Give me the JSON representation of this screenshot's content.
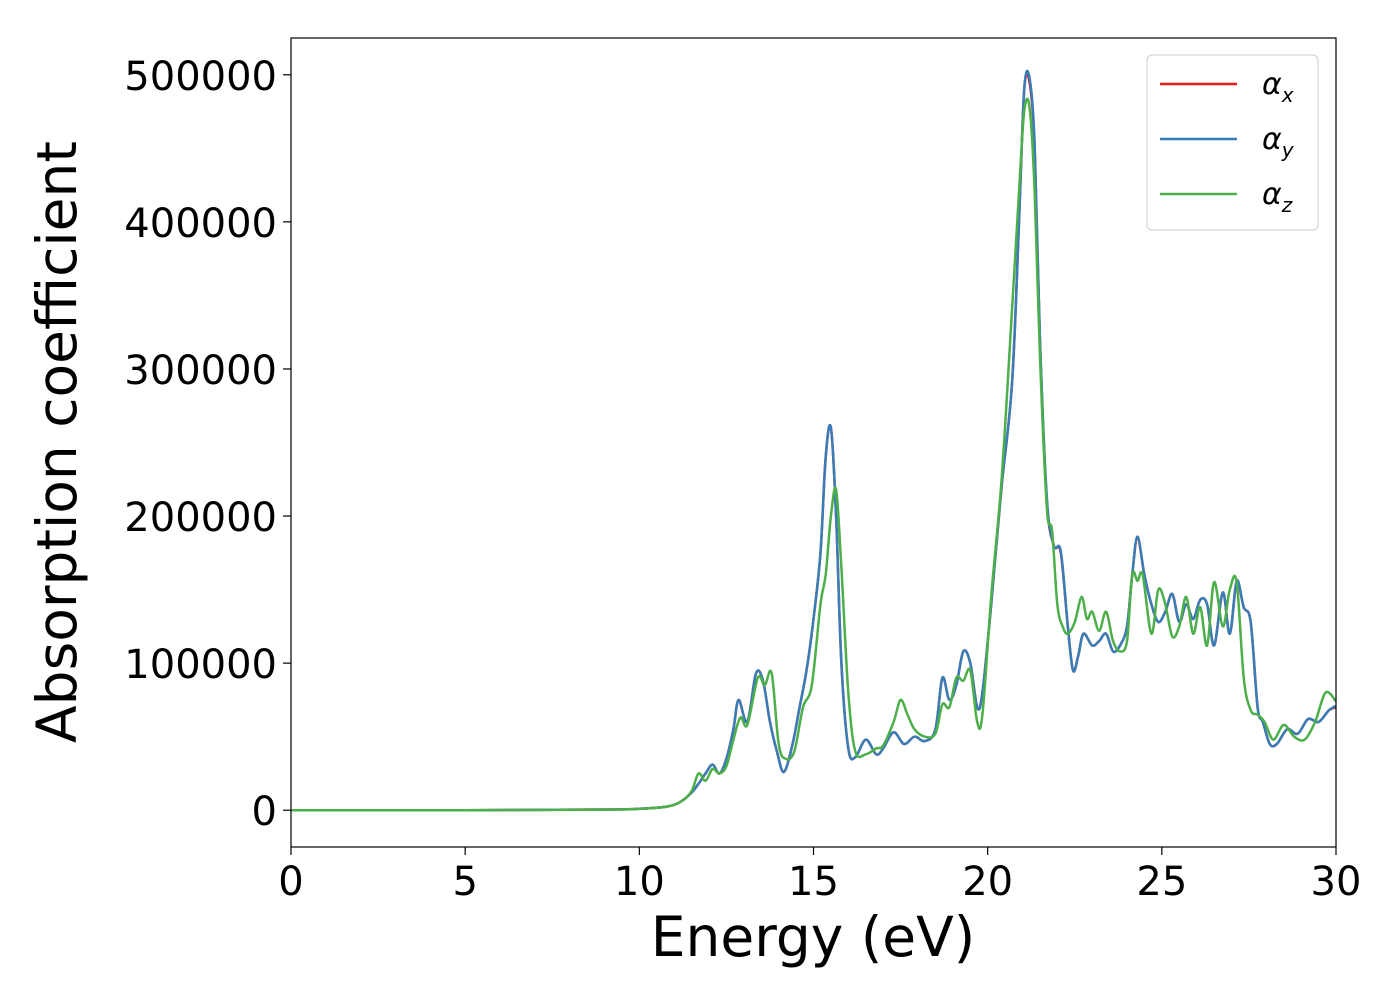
{
  "chart_data": {
    "type": "line",
    "xlabel": "Energy (eV)",
    "ylabel": "Absorption coefficient",
    "xlim": [
      0,
      30
    ],
    "ylim": [
      -25000,
      525000
    ],
    "xticks": [
      0,
      5,
      10,
      15,
      20,
      25,
      30
    ],
    "yticks": [
      0,
      100000,
      200000,
      300000,
      400000,
      500000
    ],
    "grid": false,
    "legend_position": "top-right",
    "series": [
      {
        "name": "α",
        "sub": "x",
        "color": "#e41a1c",
        "x": [
          0,
          5,
          9,
          10,
          10.8,
          11.2,
          11.5,
          11.7,
          11.9,
          12.1,
          12.3,
          12.5,
          12.7,
          12.85,
          13.1,
          13.35,
          13.55,
          13.75,
          13.95,
          14.15,
          14.4,
          14.6,
          14.8,
          15,
          15.2,
          15.35,
          15.5,
          15.65,
          15.8,
          16,
          16.2,
          16.5,
          16.8,
          17,
          17.3,
          17.6,
          17.9,
          18.2,
          18.5,
          18.7,
          18.9,
          19.1,
          19.3,
          19.5,
          19.7,
          19.85,
          20.1,
          20.4,
          20.7,
          20.9,
          21.05,
          21.2,
          21.35,
          21.5,
          21.7,
          21.9,
          22.1,
          22.3,
          22.45,
          22.6,
          22.75,
          23,
          23.2,
          23.4,
          23.6,
          23.8,
          24,
          24.15,
          24.3,
          24.5,
          24.7,
          24.9,
          25.1,
          25.3,
          25.5,
          25.7,
          25.9,
          26.1,
          26.3,
          26.5,
          26.75,
          26.95,
          27.15,
          27.35,
          27.55,
          27.75,
          27.9,
          28.1,
          28.3,
          28.6,
          28.9,
          29.2,
          29.5,
          29.8,
          30
        ],
        "y": [
          0,
          0,
          500,
          1000,
          2500,
          6000,
          12000,
          18000,
          25000,
          31000,
          25000,
          35000,
          55000,
          75000,
          60000,
          93000,
          88000,
          60000,
          40000,
          26000,
          45000,
          70000,
          95000,
          130000,
          175000,
          240000,
          260000,
          200000,
          100000,
          42000,
          36000,
          48000,
          38000,
          42000,
          53000,
          45000,
          50000,
          47000,
          55000,
          90000,
          75000,
          85000,
          108000,
          100000,
          70000,
          80000,
          140000,
          220000,
          290000,
          400000,
          490000,
          495000,
          450000,
          320000,
          210000,
          180000,
          175000,
          125000,
          95000,
          105000,
          120000,
          112000,
          115000,
          120000,
          108000,
          112000,
          125000,
          160000,
          185000,
          160000,
          140000,
          128000,
          135000,
          147000,
          128000,
          140000,
          130000,
          143000,
          140000,
          112000,
          148000,
          120000,
          155000,
          138000,
          128000,
          70000,
          60000,
          45000,
          45000,
          55000,
          52000,
          62000,
          60000,
          68000,
          70000
        ]
      },
      {
        "name": "α",
        "sub": "y",
        "color": "#377eb8",
        "x": [
          0,
          5,
          9,
          10,
          10.8,
          11.2,
          11.5,
          11.7,
          11.9,
          12.1,
          12.3,
          12.5,
          12.7,
          12.85,
          13.1,
          13.35,
          13.55,
          13.75,
          13.95,
          14.15,
          14.4,
          14.6,
          14.8,
          15,
          15.2,
          15.35,
          15.5,
          15.65,
          15.8,
          16,
          16.2,
          16.5,
          16.8,
          17,
          17.3,
          17.6,
          17.9,
          18.2,
          18.5,
          18.7,
          18.9,
          19.1,
          19.3,
          19.5,
          19.7,
          19.85,
          20.1,
          20.4,
          20.7,
          20.9,
          21.05,
          21.2,
          21.35,
          21.5,
          21.7,
          21.9,
          22.1,
          22.3,
          22.45,
          22.6,
          22.75,
          23,
          23.2,
          23.4,
          23.6,
          23.8,
          24,
          24.15,
          24.3,
          24.5,
          24.7,
          24.9,
          25.1,
          25.3,
          25.5,
          25.7,
          25.9,
          26.1,
          26.3,
          26.5,
          26.75,
          26.95,
          27.15,
          27.35,
          27.55,
          27.75,
          27.9,
          28.1,
          28.3,
          28.6,
          28.9,
          29.2,
          29.5,
          29.8,
          30
        ],
        "y": [
          0,
          0,
          500,
          1000,
          2500,
          6000,
          12000,
          18000,
          25000,
          31000,
          25000,
          35000,
          55000,
          75000,
          60000,
          93000,
          88000,
          60000,
          40000,
          26000,
          45000,
          70000,
          95000,
          130000,
          175000,
          240000,
          260000,
          200000,
          100000,
          42000,
          36000,
          48000,
          38000,
          42000,
          53000,
          45000,
          50000,
          47000,
          55000,
          90000,
          75000,
          85000,
          108000,
          100000,
          70000,
          80000,
          140000,
          220000,
          290000,
          400000,
          490000,
          498000,
          452000,
          322000,
          212000,
          180000,
          176000,
          125000,
          95000,
          105000,
          120000,
          112000,
          115000,
          120000,
          108000,
          112000,
          125000,
          160000,
          186000,
          160000,
          140000,
          128000,
          135000,
          147000,
          128000,
          140000,
          130000,
          143000,
          140000,
          112000,
          148000,
          120000,
          156000,
          138000,
          128000,
          70000,
          60000,
          45000,
          45000,
          55000,
          52000,
          62000,
          60000,
          68000,
          71000
        ]
      },
      {
        "name": "α",
        "sub": "z",
        "color": "#4daf4a",
        "x": [
          0,
          5,
          9,
          10,
          10.8,
          11.2,
          11.5,
          11.7,
          11.9,
          12.1,
          12.3,
          12.5,
          12.7,
          12.9,
          13.1,
          13.4,
          13.6,
          13.8,
          14,
          14.2,
          14.45,
          14.7,
          14.95,
          15.2,
          15.35,
          15.5,
          15.65,
          15.8,
          16,
          16.2,
          16.5,
          16.8,
          17,
          17.3,
          17.5,
          17.7,
          17.9,
          18.2,
          18.5,
          18.7,
          18.9,
          19.1,
          19.3,
          19.5,
          19.7,
          19.85,
          20.1,
          20.4,
          20.7,
          20.9,
          21.05,
          21.2,
          21.35,
          21.5,
          21.7,
          21.85,
          22,
          22.15,
          22.3,
          22.5,
          22.7,
          22.85,
          23,
          23.2,
          23.4,
          23.6,
          23.8,
          24,
          24.15,
          24.3,
          24.45,
          24.7,
          24.9,
          25.1,
          25.3,
          25.5,
          25.7,
          25.9,
          26.1,
          26.3,
          26.5,
          26.75,
          26.95,
          27.15,
          27.35,
          27.55,
          27.75,
          27.95,
          28.2,
          28.5,
          28.8,
          29.1,
          29.4,
          29.7,
          30
        ],
        "y": [
          0,
          0,
          400,
          900,
          2500,
          6000,
          13000,
          25000,
          20000,
          28000,
          25000,
          30000,
          48000,
          63000,
          58000,
          90000,
          85000,
          93000,
          45000,
          35000,
          40000,
          70000,
          85000,
          140000,
          160000,
          200000,
          218000,
          165000,
          80000,
          40000,
          38000,
          42000,
          44000,
          60000,
          75000,
          65000,
          55000,
          50000,
          52000,
          72000,
          70000,
          90000,
          88000,
          95000,
          60000,
          65000,
          145000,
          225000,
          340000,
          420000,
          475000,
          478000,
          420000,
          310000,
          205000,
          190000,
          140000,
          125000,
          120000,
          128000,
          145000,
          130000,
          135000,
          122000,
          135000,
          115000,
          108000,
          115000,
          160000,
          156000,
          160000,
          120000,
          150000,
          140000,
          118000,
          125000,
          145000,
          120000,
          138000,
          112000,
          155000,
          125000,
          150000,
          155000,
          90000,
          68000,
          65000,
          60000,
          48000,
          58000,
          50000,
          48000,
          60000,
          80000,
          74000
        ]
      }
    ]
  }
}
